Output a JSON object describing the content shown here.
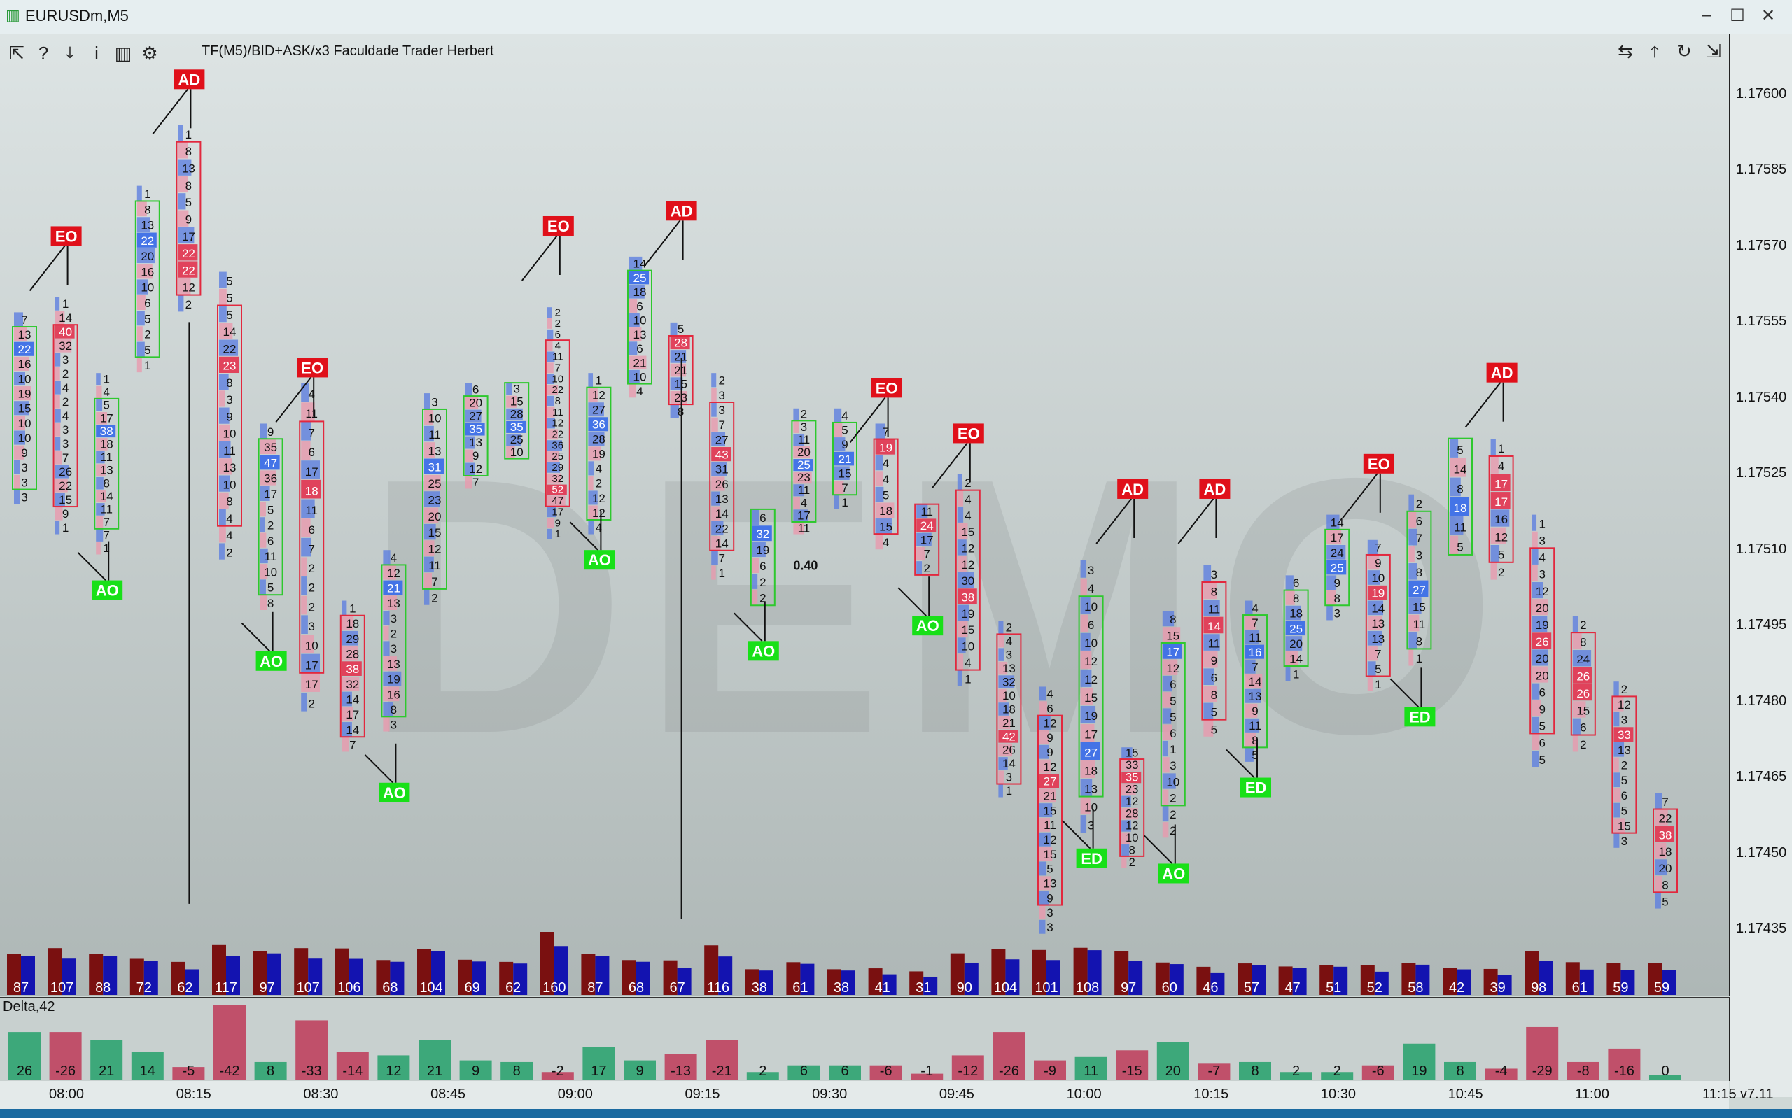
{
  "window": {
    "title": "EURUSDm,M5",
    "controls": {
      "minimize": "–",
      "maximize": "☐",
      "close": "✕"
    }
  },
  "toolbar": {
    "left_icons": [
      "cursor-icon",
      "help-icon",
      "download-icon",
      "info-icon",
      "chart-template-icon",
      "gear-icon"
    ],
    "left_glyphs": [
      "⇱",
      "?",
      "⤓",
      "i",
      "▥",
      "⚙"
    ],
    "right_glyphs": [
      "⇆",
      "⤒",
      "↻",
      "⇲"
    ],
    "indicator_label": "TF(M5)/BID+ASK/x3   Faculdade Trader Herbert"
  },
  "watermark": "DEMO",
  "price_axis": {
    "labels": [
      "1.17600",
      "1.17585",
      "1.17570",
      "1.17555",
      "1.17540",
      "1.17525",
      "1.17510",
      "1.17495",
      "1.17480",
      "1.17465",
      "1.17450",
      "1.17435"
    ]
  },
  "delta_panel": {
    "label": "Delta,42"
  },
  "time_axis": {
    "labels": [
      "08:00",
      "08:15",
      "08:30",
      "08:45",
      "09:00",
      "09:15",
      "09:30",
      "09:45",
      "10:00",
      "10:15",
      "10:30",
      "10:45",
      "11:00",
      "11:15"
    ]
  },
  "version": "v7.11",
  "annotation_text": "0.40",
  "colors": {
    "bid": "#e89aae",
    "ask": "#5e7fe0",
    "poc_red": "#e23b55",
    "poc_blue": "#3d6fe8",
    "vol_dn": "#7a1010",
    "vol_up": "#1313b0",
    "delta_up": "#3da87a",
    "delta_dn": "#c0506a",
    "tag_red": "#e0101a",
    "tag_green": "#18e018"
  },
  "chart_data": {
    "type": "footprint",
    "symbol": "EURUSDm",
    "timeframe": "M5",
    "ylim": [
      1.1743,
      1.17605
    ],
    "candles": [
      {
        "vol": 87,
        "delta": 26,
        "low": 1.17519,
        "high": 1.17557,
        "levels": [
          "7",
          "13",
          "22",
          "16",
          "10",
          "19",
          "15",
          "10",
          "10",
          "9",
          "3",
          "3",
          "3"
        ],
        "bull": true
      },
      {
        "vol": 107,
        "delta": -26,
        "low": 1.17513,
        "high": 1.1756,
        "levels": [
          "1",
          "14",
          "40",
          "32",
          "3",
          "2",
          "4",
          "2",
          "4",
          "3",
          "3",
          "7",
          "26",
          "22",
          "15",
          "9",
          "1"
        ],
        "bull": false
      },
      {
        "vol": 88,
        "delta": 21,
        "low": 1.17509,
        "high": 1.17545,
        "levels": [
          "1",
          "4",
          "5",
          "17",
          "38",
          "18",
          "11",
          "13",
          "8",
          "14",
          "11",
          "7",
          "7",
          "1"
        ],
        "bull": true
      },
      {
        "vol": 72,
        "delta": 14,
        "low": 1.17545,
        "high": 1.17582,
        "levels": [
          "1",
          "8",
          "13",
          "22",
          "20",
          "16",
          "10",
          "6",
          "5",
          "2",
          "5",
          "1"
        ],
        "bull": true
      },
      {
        "vol": 62,
        "delta": -5,
        "low": 1.17557,
        "high": 1.17594,
        "levels": [
          "1",
          "8",
          "13",
          "8",
          "5",
          "9",
          "17",
          "22",
          "22",
          "12",
          "2"
        ],
        "bull": false
      },
      {
        "vol": 117,
        "delta": -42,
        "low": 1.17508,
        "high": 1.17565,
        "levels": [
          "5",
          "5",
          "5",
          "14",
          "22",
          "23",
          "8",
          "3",
          "9",
          "10",
          "11",
          "13",
          "10",
          "8",
          "4",
          "4",
          "2"
        ],
        "bull": false
      },
      {
        "vol": 97,
        "delta": 8,
        "low": 1.17498,
        "high": 1.17535,
        "levels": [
          "9",
          "35",
          "47",
          "36",
          "17",
          "5",
          "2",
          "6",
          "11",
          "10",
          "5",
          "8"
        ],
        "bull": true
      },
      {
        "vol": 107,
        "delta": -33,
        "low": 1.17478,
        "high": 1.17543,
        "levels": [
          "4",
          "11",
          "7",
          "6",
          "17",
          "18",
          "11",
          "6",
          "7",
          "2",
          "2",
          "2",
          "3",
          "10",
          "17",
          "17",
          "2"
        ],
        "bull": false
      },
      {
        "vol": 106,
        "delta": -14,
        "low": 1.1747,
        "high": 1.175,
        "levels": [
          "1",
          "18",
          "29",
          "28",
          "38",
          "32",
          "14",
          "17",
          "14",
          "7"
        ],
        "bull": false
      },
      {
        "vol": 68,
        "delta": 12,
        "low": 1.17474,
        "high": 1.1751,
        "levels": [
          "4",
          "12",
          "21",
          "13",
          "3",
          "2",
          "3",
          "13",
          "19",
          "16",
          "8",
          "3"
        ],
        "bull": true
      },
      {
        "vol": 104,
        "delta": 21,
        "low": 1.17499,
        "high": 1.17541,
        "levels": [
          "3",
          "10",
          "11",
          "13",
          "31",
          "25",
          "23",
          "20",
          "15",
          "12",
          "11",
          "7",
          "2"
        ],
        "bull": true
      },
      {
        "vol": 69,
        "delta": 9,
        "low": 1.17522,
        "high": 1.17543,
        "levels": [
          "6",
          "20",
          "27",
          "35",
          "13",
          "9",
          "12",
          "7"
        ],
        "bull": true
      },
      {
        "vol": 62,
        "delta": 8,
        "low": 1.17528,
        "high": 1.17543,
        "levels": [
          "3",
          "15",
          "28",
          "35",
          "25",
          "10"
        ],
        "bull": true
      },
      {
        "vol": 160,
        "delta": -2,
        "low": 1.17512,
        "high": 1.17558,
        "levels": [
          "2",
          "2",
          "6",
          "4",
          "11",
          "7",
          "10",
          "22",
          "8",
          "11",
          "12",
          "22",
          "36",
          "25",
          "29",
          "32",
          "52",
          "47",
          "17",
          "9",
          "1"
        ],
        "bull": false
      },
      {
        "vol": 87,
        "delta": 17,
        "low": 1.17513,
        "high": 1.17545,
        "levels": [
          "1",
          "12",
          "27",
          "36",
          "28",
          "19",
          "4",
          "2",
          "12",
          "12",
          "4"
        ],
        "bull": true
      },
      {
        "vol": 68,
        "delta": 9,
        "low": 1.1754,
        "high": 1.17568,
        "levels": [
          "14",
          "25",
          "18",
          "6",
          "10",
          "13",
          "6",
          "21",
          "10",
          "4"
        ],
        "bull": true
      },
      {
        "vol": 67,
        "delta": -13,
        "low": 1.17536,
        "high": 1.17555,
        "levels": [
          "5",
          "28",
          "21",
          "21",
          "15",
          "23",
          "8"
        ],
        "bull": false
      },
      {
        "vol": 116,
        "delta": -21,
        "low": 1.17504,
        "high": 1.17545,
        "levels": [
          "2",
          "3",
          "3",
          "7",
          "27",
          "43",
          "31",
          "26",
          "13",
          "14",
          "22",
          "14",
          "7",
          "1"
        ],
        "bull": false
      },
      {
        "vol": 38,
        "delta": 2,
        "low": 1.17499,
        "high": 1.17518,
        "levels": [
          "6",
          "32",
          "19",
          "6",
          "2",
          "2"
        ],
        "bull": true
      },
      {
        "vol": 61,
        "delta": 6,
        "low": 1.17513,
        "high": 1.17538,
        "levels": [
          "2",
          "3",
          "11",
          "20",
          "25",
          "23",
          "11",
          "4",
          "17",
          "11"
        ],
        "bull": true
      },
      {
        "vol": 38,
        "delta": 6,
        "low": 1.17518,
        "high": 1.17538,
        "levels": [
          "4",
          "5",
          "9",
          "21",
          "15",
          "7",
          "1"
        ],
        "bull": true
      },
      {
        "vol": 41,
        "delta": -6,
        "low": 1.1751,
        "high": 1.17535,
        "levels": [
          "7",
          "19",
          "4",
          "4",
          "5",
          "18",
          "15",
          "4"
        ],
        "bull": false
      },
      {
        "vol": 31,
        "delta": -1,
        "low": 1.17505,
        "high": 1.17519,
        "levels": [
          "11",
          "24",
          "17",
          "7",
          "2"
        ],
        "bull": false
      },
      {
        "vol": 90,
        "delta": -12,
        "low": 1.17483,
        "high": 1.17525,
        "levels": [
          "2",
          "4",
          "4",
          "15",
          "12",
          "12",
          "30",
          "38",
          "19",
          "15",
          "10",
          "4",
          "1"
        ],
        "bull": false
      },
      {
        "vol": 104,
        "delta": -26,
        "low": 1.17461,
        "high": 1.17496,
        "levels": [
          "2",
          "4",
          "3",
          "13",
          "32",
          "10",
          "18",
          "21",
          "42",
          "26",
          "14",
          "3",
          "1"
        ],
        "bull": false
      },
      {
        "vol": 101,
        "delta": -9,
        "low": 1.17434,
        "high": 1.17483,
        "levels": [
          "4",
          "6",
          "12",
          "9",
          "9",
          "12",
          "27",
          "21",
          "15",
          "11",
          "12",
          "15",
          "5",
          "13",
          "9",
          "3",
          "3"
        ],
        "bull": false
      },
      {
        "vol": 108,
        "delta": 11,
        "low": 1.17454,
        "high": 1.17508,
        "levels": [
          "3",
          "4",
          "10",
          "6",
          "10",
          "12",
          "12",
          "15",
          "19",
          "17",
          "27",
          "18",
          "13",
          "10",
          "3"
        ],
        "bull": true
      },
      {
        "vol": 97,
        "delta": -15,
        "low": 1.17447,
        "high": 1.17471,
        "levels": [
          "15",
          "33",
          "35",
          "23",
          "12",
          "28",
          "12",
          "10",
          "8",
          "2"
        ],
        "bull": false
      },
      {
        "vol": 60,
        "delta": 20,
        "low": 1.17453,
        "high": 1.17498,
        "levels": [
          "8",
          "15",
          "17",
          "12",
          "6",
          "5",
          "5",
          "6",
          "1",
          "3",
          "10",
          "2",
          "2",
          "2"
        ],
        "bull": true
      },
      {
        "vol": 46,
        "delta": -7,
        "low": 1.17473,
        "high": 1.17507,
        "levels": [
          "3",
          "8",
          "11",
          "14",
          "11",
          "9",
          "6",
          "8",
          "5",
          "5"
        ],
        "bull": false
      },
      {
        "vol": 57,
        "delta": 8,
        "low": 1.17468,
        "high": 1.175,
        "levels": [
          "4",
          "7",
          "11",
          "16",
          "7",
          "14",
          "13",
          "9",
          "11",
          "8",
          "5"
        ],
        "bull": true
      },
      {
        "vol": 47,
        "delta": 2,
        "low": 1.17484,
        "high": 1.17505,
        "levels": [
          "6",
          "8",
          "18",
          "25",
          "20",
          "14",
          "1"
        ],
        "bull": true
      },
      {
        "vol": 51,
        "delta": 2,
        "low": 1.17496,
        "high": 1.17517,
        "levels": [
          "14",
          "17",
          "24",
          "25",
          "9",
          "8",
          "3"
        ],
        "bull": true
      },
      {
        "vol": 52,
        "delta": -6,
        "low": 1.17482,
        "high": 1.17512,
        "levels": [
          "7",
          "9",
          "10",
          "19",
          "14",
          "13",
          "13",
          "7",
          "5",
          "1"
        ],
        "bull": false
      },
      {
        "vol": 58,
        "delta": 19,
        "low": 1.17487,
        "high": 1.17521,
        "levels": [
          "2",
          "6",
          "7",
          "3",
          "8",
          "27",
          "15",
          "11",
          "8",
          "1"
        ],
        "bull": true
      },
      {
        "vol": 42,
        "delta": 8,
        "low": 1.17509,
        "high": 1.17532,
        "levels": [
          "5",
          "14",
          "8",
          "18",
          "11",
          "5"
        ],
        "bull": true
      },
      {
        "vol": 39,
        "delta": -4,
        "low": 1.17504,
        "high": 1.17532,
        "levels": [
          "1",
          "4",
          "17",
          "17",
          "16",
          "12",
          "5",
          "2"
        ],
        "bull": false
      },
      {
        "vol": 98,
        "delta": -29,
        "low": 1.17467,
        "high": 1.17517,
        "levels": [
          "1",
          "3",
          "4",
          "3",
          "12",
          "20",
          "19",
          "26",
          "20",
          "20",
          "6",
          "9",
          "5",
          "6",
          "5"
        ],
        "bull": false
      },
      {
        "vol": 61,
        "delta": -8,
        "low": 1.1747,
        "high": 1.17497,
        "levels": [
          "2",
          "8",
          "24",
          "26",
          "26",
          "15",
          "6",
          "2"
        ],
        "bull": false
      },
      {
        "vol": 59,
        "delta": -16,
        "low": 1.17451,
        "high": 1.17484,
        "levels": [
          "2",
          "12",
          "3",
          "33",
          "13",
          "2",
          "5",
          "6",
          "5",
          "15",
          "3"
        ],
        "bull": false
      },
      {
        "vol": 59,
        "delta": 0,
        "low": 1.17439,
        "high": 1.17462,
        "levels": [
          "7",
          "22",
          "38",
          "18",
          "20",
          "8",
          "5"
        ],
        "bull": false
      }
    ],
    "tags": [
      {
        "text": "EO",
        "candle": 1,
        "price": 1.17572,
        "kind": "red"
      },
      {
        "text": "AD",
        "candle": 4,
        "price": 1.17603,
        "kind": "red"
      },
      {
        "text": "AO",
        "candle": 2,
        "price": 1.17502,
        "kind": "green"
      },
      {
        "text": "EO",
        "candle": 7,
        "price": 1.17546,
        "kind": "red"
      },
      {
        "text": "AO",
        "candle": 6,
        "price": 1.17488,
        "kind": "green"
      },
      {
        "text": "AO",
        "candle": 9,
        "price": 1.17462,
        "kind": "green"
      },
      {
        "text": "EO",
        "candle": 13,
        "price": 1.17574,
        "kind": "red"
      },
      {
        "text": "AO",
        "candle": 14,
        "price": 1.17508,
        "kind": "green"
      },
      {
        "text": "AD",
        "candle": 16,
        "price": 1.17577,
        "kind": "red"
      },
      {
        "text": "AO",
        "candle": 18,
        "price": 1.1749,
        "kind": "green"
      },
      {
        "text": "EO",
        "candle": 21,
        "price": 1.17542,
        "kind": "red"
      },
      {
        "text": "AO",
        "candle": 22,
        "price": 1.17495,
        "kind": "green"
      },
      {
        "text": "EO",
        "candle": 23,
        "price": 1.17533,
        "kind": "red"
      },
      {
        "text": "AD",
        "candle": 27,
        "price": 1.17522,
        "kind": "red"
      },
      {
        "text": "ED",
        "candle": 26,
        "price": 1.17449,
        "kind": "green"
      },
      {
        "text": "AO",
        "candle": 28,
        "price": 1.17446,
        "kind": "green"
      },
      {
        "text": "AD",
        "candle": 29,
        "price": 1.17522,
        "kind": "red"
      },
      {
        "text": "ED",
        "candle": 30,
        "price": 1.17463,
        "kind": "green"
      },
      {
        "text": "EO",
        "candle": 33,
        "price": 1.17527,
        "kind": "red"
      },
      {
        "text": "ED",
        "candle": 34,
        "price": 1.17477,
        "kind": "green"
      },
      {
        "text": "AD",
        "candle": 36,
        "price": 1.17545,
        "kind": "red"
      }
    ],
    "xlabel": "",
    "ylabel": ""
  }
}
